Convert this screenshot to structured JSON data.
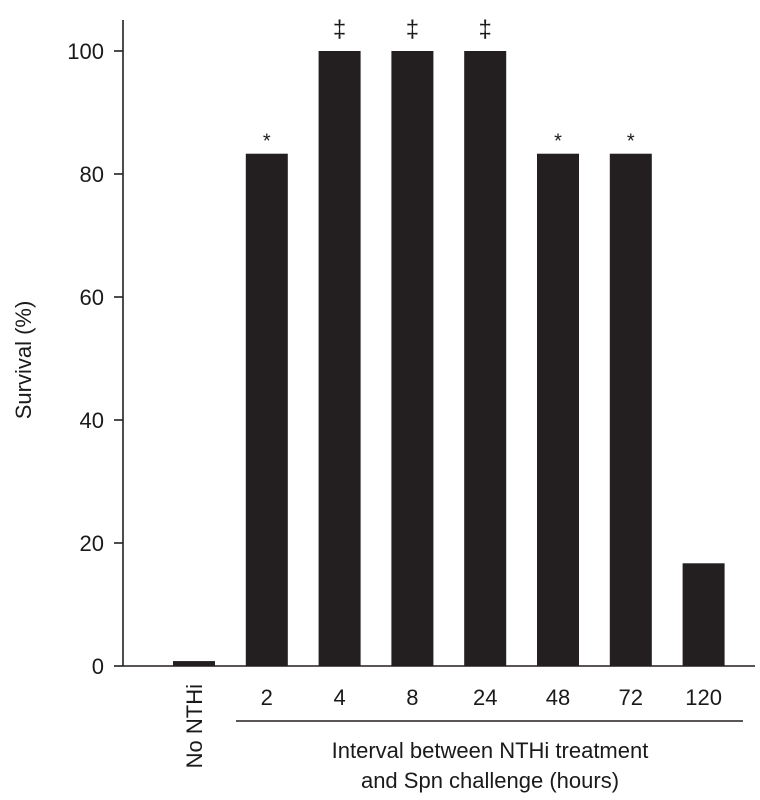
{
  "chart_data": {
    "type": "bar",
    "categories": [
      "No NTHi",
      "2",
      "4",
      "8",
      "24",
      "48",
      "72",
      "120"
    ],
    "values": [
      0.8,
      83.3,
      100,
      100,
      100,
      83.3,
      83.3,
      16.7
    ],
    "annotations": [
      "",
      "*",
      "‡",
      "‡",
      "‡",
      "*",
      "*",
      ""
    ],
    "ylabel": "Survival (%)",
    "xlabel_line1": "Interval between NTHi treatment",
    "xlabel_line2": "and Spn challenge (hours)",
    "ylim": [
      0,
      100
    ],
    "yticks": [
      0,
      20,
      40,
      60,
      80,
      100
    ],
    "bar_color": "#231f20",
    "grid": false,
    "legend": "none"
  }
}
